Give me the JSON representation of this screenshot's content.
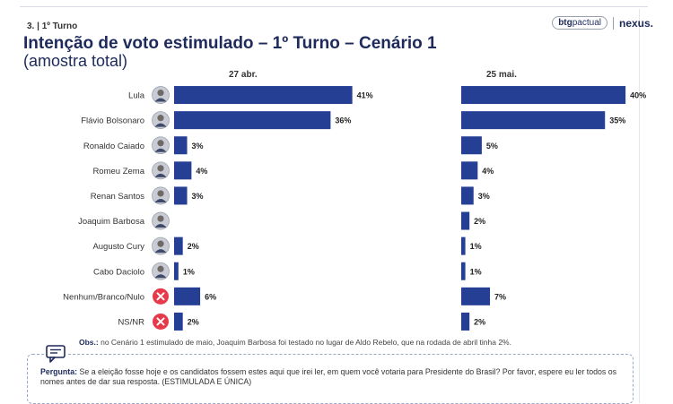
{
  "header": {
    "section": "3. | 1º Turno",
    "brand_btg_bold": "btg",
    "brand_btg_regular": "pactual",
    "brand_nexus": "nexus.",
    "title": "Intenção de voto estimulado – 1º Turno – Cenário 1",
    "subtitle": "(amostra total)"
  },
  "colors": {
    "bar": "#243f94",
    "title": "#1d2a5b",
    "x_badge": "#e8394a"
  },
  "chart_data": {
    "type": "bar",
    "orientation": "horizontal",
    "categories": [
      "Lula",
      "Flávio Bolsonaro",
      "Ronaldo Caiado",
      "Romeu Zema",
      "Renan Santos",
      "Joaquim Barbosa",
      "Augusto Cury",
      "Cabo Daciolo",
      "Nenhum/Branco/Nulo",
      "NS/NR"
    ],
    "category_icons": [
      "avatar",
      "avatar",
      "avatar",
      "avatar",
      "avatar",
      "avatar",
      "avatar",
      "avatar",
      "x-icon",
      "x-icon"
    ],
    "series": [
      {
        "name": "27 abr.",
        "values": [
          41,
          36,
          3,
          4,
          3,
          null,
          2,
          1,
          6,
          2
        ],
        "labels": [
          "41%",
          "36%",
          "3%",
          "4%",
          "3%",
          "",
          "2%",
          "1%",
          "6%",
          "2%"
        ]
      },
      {
        "name": "25 mai.",
        "values": [
          40,
          35,
          5,
          4,
          3,
          2,
          1,
          1,
          7,
          2
        ],
        "labels": [
          "40%",
          "35%",
          "5%",
          "4%",
          "3%",
          "2%",
          "1%",
          "1%",
          "7%",
          "2%"
        ]
      }
    ],
    "xlim": [
      0,
      45
    ],
    "grid": false
  },
  "notes": {
    "obs_label": "Obs.:",
    "obs_text": " no Cenário 1 estimulado de maio, Joaquim Barbosa foi testado no lugar de Aldo Rebelo, que na rodada de abril tinha 2%.",
    "question_label": "Pergunta:",
    "question_text": " Se a eleição fosse hoje e os candidatos fossem estes aqui que irei ler, em quem você votaria para Presidente do Brasil? Por favor, espere eu ler todos os nomes antes de dar sua resposta. (ESTIMULADA E ÚNICA)"
  }
}
